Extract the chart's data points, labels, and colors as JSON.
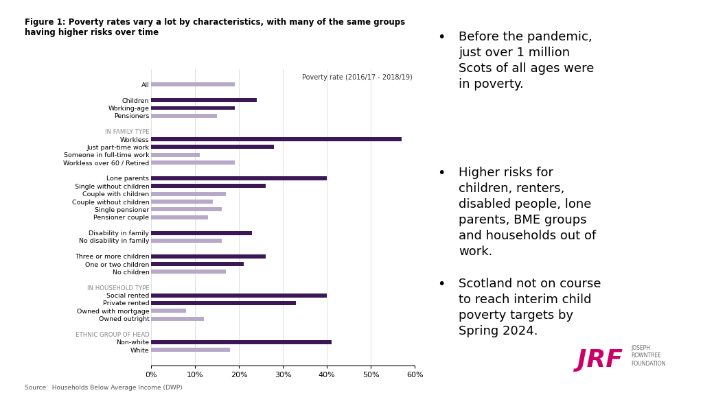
{
  "title_line1": "Figure 1: Poverty rates vary a lot by characteristics, with many of the same groups",
  "title_line2": "having higher risks over time",
  "subtitle": "Poverty rate (2016/17 - 2018/19)",
  "source": "Source:  Households Below Average Income (DWP)",
  "header_bar_color": "#5c2d82",
  "dark_purple": "#3b1756",
  "light_purple": "#b8a9c9",
  "background_color": "#ffffff",
  "section_header_color": "#888888",
  "categories": [
    "All",
    " ",
    "Children",
    "Working-age",
    "Pensioners",
    "  ",
    "IN FAMILY TYPE",
    "Workless",
    "Just part-time work",
    "Someone in full-time work",
    "Workless over 60 / Retired",
    "   ",
    "Lone parents",
    "Single without children",
    "Couple with children",
    "Couple without children",
    "Single pensioner",
    "Pensioner couple",
    "    ",
    "Disability in family",
    "No disability in family",
    "     ",
    "Three or more children",
    "One or two children",
    "No children",
    "      ",
    "IN HOUSEHOLD TYPE",
    "Social rented",
    "Private rented",
    "Owned with mortgage",
    "Owned outright",
    "       ",
    "ETHNIC GROUP OF HEAD",
    "Non-white",
    "White"
  ],
  "values": [
    19,
    null,
    24,
    19,
    15,
    null,
    null,
    57,
    28,
    11,
    19,
    null,
    40,
    26,
    17,
    14,
    16,
    13,
    null,
    23,
    16,
    null,
    26,
    21,
    17,
    null,
    null,
    40,
    33,
    8,
    12,
    null,
    null,
    41,
    18
  ],
  "bar_colors": [
    "#b8a9c9",
    null,
    "#3b1756",
    "#3b1756",
    "#b8a9c9",
    null,
    null,
    "#3b1756",
    "#3b1756",
    "#b8a9c9",
    "#b8a9c9",
    null,
    "#3b1756",
    "#3b1756",
    "#b8a9c9",
    "#b8a9c9",
    "#b8a9c9",
    "#b8a9c9",
    null,
    "#3b1756",
    "#b8a9c9",
    null,
    "#3b1756",
    "#3b1756",
    "#b8a9c9",
    null,
    null,
    "#3b1756",
    "#3b1756",
    "#b8a9c9",
    "#b8a9c9",
    null,
    null,
    "#3b1756",
    "#b8a9c9"
  ],
  "xlim": [
    0,
    60
  ],
  "xticks": [
    0,
    10,
    20,
    30,
    40,
    50,
    60
  ],
  "xtick_labels": [
    "0%",
    "10%",
    "20%",
    "30%",
    "40%",
    "50%",
    "60%"
  ],
  "bullet_points": [
    "Before the pandemic,\njust over 1 million\nScots of all ages were\nin poverty.",
    "Higher risks for\nchildren, renters,\ndisabled people, lone\nparents, BME groups\nand households out of\nwork.",
    "Scotland not on course\nto reach interim child\npoverty targets by\nSpring 2024."
  ]
}
